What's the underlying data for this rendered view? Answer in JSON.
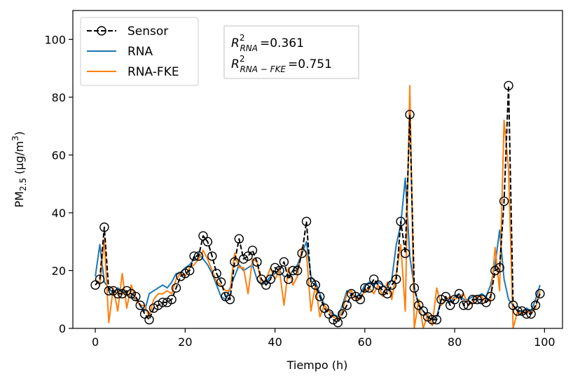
{
  "chart_data": {
    "type": "line",
    "xlabel": "Tiempo (h)",
    "ylabel": "PM",
    "ylabel_sub": "2.5",
    "ylabel_units": "(μg/m",
    "ylabel_units_sup": "3",
    "ylabel_units_close": ")",
    "xlim": [
      -5,
      104
    ],
    "ylim": [
      0,
      110
    ],
    "xticks": [
      0,
      20,
      40,
      60,
      80,
      100
    ],
    "yticks": [
      0,
      20,
      40,
      60,
      80,
      100
    ],
    "grid": false,
    "legend_position": "top-left",
    "annotation": {
      "r2_symbol": "R",
      "r2_sup": "2",
      "rna_sub": "RNA",
      "rna_value": "=0.361",
      "fke_sub": "RNA − FKE",
      "fke_value": "=0.751"
    },
    "series": [
      {
        "name": "Sensor",
        "color": "#000000",
        "style": "dashed-circle-markers",
        "x": [
          0,
          1,
          2,
          3,
          4,
          5,
          6,
          7,
          8,
          9,
          10,
          11,
          12,
          13,
          14,
          15,
          16,
          17,
          18,
          19,
          20,
          21,
          22,
          23,
          24,
          25,
          26,
          27,
          28,
          29,
          30,
          31,
          32,
          33,
          34,
          35,
          36,
          37,
          38,
          39,
          40,
          41,
          42,
          43,
          44,
          45,
          46,
          47,
          48,
          49,
          50,
          51,
          52,
          53,
          54,
          55,
          56,
          57,
          58,
          59,
          60,
          61,
          62,
          63,
          64,
          65,
          66,
          67,
          68,
          69,
          70,
          71,
          72,
          73,
          74,
          75,
          76,
          77,
          78,
          79,
          80,
          81,
          82,
          83,
          84,
          85,
          86,
          87,
          88,
          89,
          90,
          91,
          92,
          93,
          94,
          95,
          96,
          97,
          98,
          99
        ],
        "values": [
          15,
          17,
          35,
          13,
          13,
          12,
          12,
          13,
          12,
          11,
          8,
          5,
          3,
          7,
          8,
          9,
          9,
          10,
          14,
          18,
          19,
          20,
          25,
          25,
          32,
          30,
          25,
          19,
          16,
          11,
          10,
          23,
          31,
          24,
          25,
          27,
          23,
          17,
          15,
          17,
          21,
          20,
          23,
          17,
          20,
          20,
          26,
          37,
          16,
          15,
          11,
          7,
          5,
          3,
          2,
          5,
          8,
          12,
          11,
          10,
          14,
          14,
          17,
          15,
          13,
          12,
          15,
          17,
          37,
          26,
          74,
          14,
          8,
          6,
          4,
          3,
          3,
          10,
          11,
          8,
          10,
          12,
          8,
          8,
          10,
          10,
          10,
          9,
          11,
          20,
          21,
          44,
          84,
          8,
          6,
          6,
          5,
          5,
          8,
          12
        ]
      },
      {
        "name": "RNA",
        "color": "#1f77b4",
        "style": "solid",
        "x": [
          0,
          1,
          2,
          3,
          4,
          5,
          6,
          7,
          8,
          9,
          10,
          11,
          12,
          13,
          14,
          15,
          16,
          17,
          18,
          19,
          20,
          21,
          22,
          23,
          24,
          25,
          26,
          27,
          28,
          29,
          30,
          31,
          32,
          33,
          34,
          35,
          36,
          37,
          38,
          39,
          40,
          41,
          42,
          43,
          44,
          45,
          46,
          47,
          48,
          49,
          50,
          51,
          52,
          53,
          54,
          55,
          56,
          57,
          58,
          59,
          60,
          61,
          62,
          63,
          64,
          65,
          66,
          67,
          68,
          69,
          70,
          71,
          72,
          73,
          74,
          75,
          76,
          77,
          78,
          79,
          80,
          81,
          82,
          83,
          84,
          85,
          86,
          87,
          88,
          89,
          90,
          91,
          92,
          93,
          94,
          95,
          96,
          97,
          98,
          99
        ],
        "values": [
          18,
          29,
          16,
          14,
          12,
          14,
          13,
          12,
          11,
          10,
          8,
          6,
          12,
          13,
          14,
          15,
          14,
          16,
          19,
          19,
          21,
          22,
          24,
          26,
          24,
          22,
          19,
          15,
          11,
          10,
          14,
          18,
          22,
          20,
          21,
          22,
          17,
          15,
          16,
          18,
          19,
          20,
          18,
          18,
          20,
          22,
          26,
          30,
          18,
          16,
          12,
          8,
          6,
          5,
          4,
          8,
          13,
          12,
          11,
          12,
          15,
          16,
          15,
          16,
          15,
          14,
          17,
          29,
          36,
          52,
          25,
          14,
          8,
          6,
          4,
          3,
          4,
          10,
          10,
          9,
          11,
          12,
          10,
          10,
          11,
          11,
          12,
          11,
          15,
          22,
          34,
          17,
          10,
          8,
          6,
          6,
          7,
          6,
          10,
          15
        ]
      },
      {
        "name": "RNA-FKE",
        "color": "#ff7f0e",
        "style": "solid",
        "x": [
          0,
          1,
          2,
          3,
          4,
          5,
          6,
          7,
          8,
          9,
          10,
          11,
          12,
          13,
          14,
          15,
          16,
          17,
          18,
          19,
          20,
          21,
          22,
          23,
          24,
          25,
          26,
          27,
          28,
          29,
          30,
          31,
          32,
          33,
          34,
          35,
          36,
          37,
          38,
          39,
          40,
          41,
          42,
          43,
          44,
          45,
          46,
          47,
          48,
          49,
          50,
          51,
          52,
          53,
          54,
          55,
          56,
          57,
          58,
          59,
          60,
          61,
          62,
          63,
          64,
          65,
          66,
          67,
          68,
          69,
          70,
          71,
          72,
          73,
          74,
          75,
          76,
          77,
          78,
          79,
          80,
          81,
          82,
          83,
          84,
          85,
          86,
          87,
          88,
          89,
          90,
          91,
          92,
          93,
          94,
          95,
          96,
          97,
          98,
          99
        ],
        "values": [
          17,
          15,
          31,
          2,
          14,
          6,
          19,
          7,
          15,
          10,
          8,
          8,
          4,
          10,
          12,
          12,
          13,
          12,
          17,
          19,
          18,
          21,
          22,
          24,
          27,
          24,
          20,
          16,
          15,
          13,
          13,
          26,
          21,
          21,
          12,
          24,
          23,
          15,
          17,
          21,
          17,
          20,
          8,
          21,
          15,
          18,
          28,
          26,
          6,
          15,
          4,
          8,
          6,
          4,
          3,
          6,
          12,
          13,
          10,
          10,
          13,
          14,
          12,
          15,
          11,
          16,
          10,
          19,
          29,
          6,
          84,
          0,
          10,
          0,
          5,
          1,
          14,
          8,
          10,
          11,
          10,
          11,
          12,
          8,
          9,
          11,
          11,
          9,
          10,
          28,
          13,
          72,
          55,
          0,
          6,
          5,
          6,
          5,
          7,
          13
        ]
      }
    ]
  }
}
